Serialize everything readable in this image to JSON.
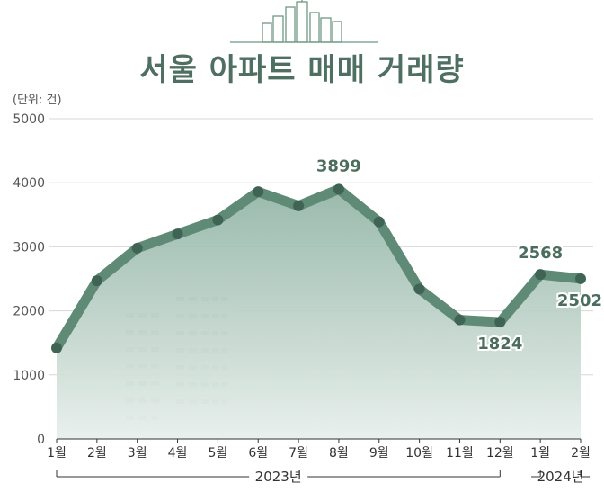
{
  "colors": {
    "accent": "#5f8a76",
    "title": "#4e6f61",
    "fill_top": "#8fb3a3",
    "fill_bottom": "#e8efec",
    "label": "#4a6d5e"
  },
  "chart_data": {
    "type": "area",
    "title": "서울 아파트 매매 거래량",
    "unit_label": "(단위: 건)",
    "categories": [
      "1월",
      "2월",
      "3월",
      "4월",
      "5월",
      "6월",
      "7월",
      "8월",
      "9월",
      "10월",
      "11월",
      "12월",
      "1월",
      "2월"
    ],
    "values": [
      1420,
      2470,
      2980,
      3200,
      3420,
      3860,
      3640,
      3899,
      3390,
      2340,
      1860,
      1824,
      2568,
      2502
    ],
    "data_labels": [
      {
        "index": 7,
        "text": "3899"
      },
      {
        "index": 11,
        "text": "1824"
      },
      {
        "index": 12,
        "text": "2568"
      },
      {
        "index": 13,
        "text": "2502"
      }
    ],
    "ylim": [
      0,
      5000
    ],
    "yticks": [
      "0",
      "1000",
      "2000",
      "3000",
      "4000",
      "5000"
    ],
    "year_groups": [
      {
        "label": "2023년",
        "start": 0,
        "end": 11
      },
      {
        "label": "2024년",
        "start": 12,
        "end": 13
      }
    ],
    "grid": true,
    "legend": "none"
  }
}
